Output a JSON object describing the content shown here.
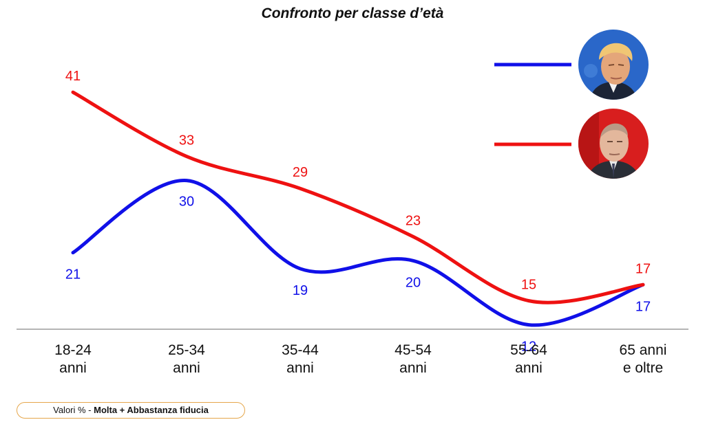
{
  "chart_data": {
    "type": "line",
    "title": "Confronto per classe d’età",
    "categories": [
      "18-24\nanni",
      "25-34\nanni",
      "35-44\nanni",
      "45-54\nanni",
      "55-64\nanni",
      "65 anni\ne oltre"
    ],
    "series": [
      {
        "name": "",
        "color": "#1010e8",
        "values": [
          21,
          30,
          19,
          20,
          12,
          17
        ],
        "icon": "trump-portrait"
      },
      {
        "name": "",
        "color": "#ee1111",
        "values": [
          41,
          33,
          29,
          23,
          15,
          17
        ],
        "icon": "putin-portrait"
      }
    ],
    "ylim": [
      0,
      45
    ],
    "grid": false,
    "legend": "top-right"
  },
  "note": {
    "prefix": "Valori % - ",
    "bold": "Molta + Abbastanza fiducia"
  }
}
